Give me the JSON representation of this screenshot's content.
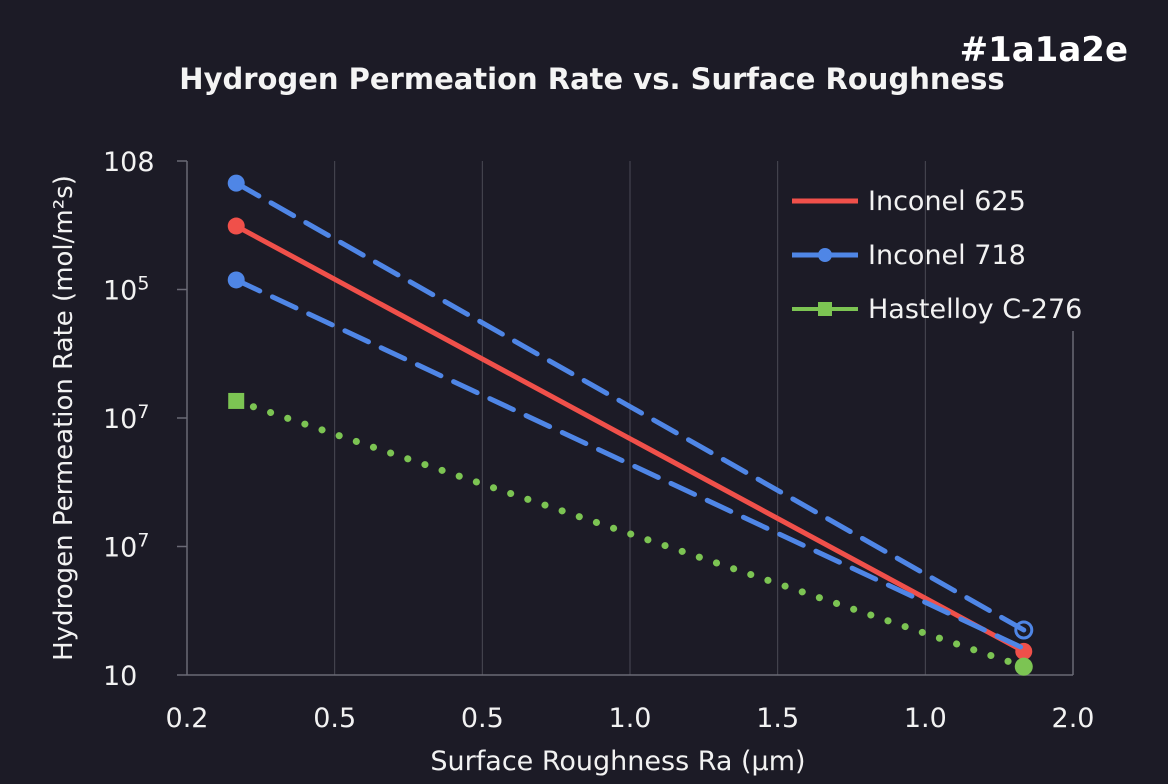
{
  "tag_text": "#1a1a2e",
  "chart_data": {
    "type": "line",
    "title": "Hydrogen Permeation Rate vs. Surface Roughness",
    "xlabel": "Surface Roughness Ra (μm)",
    "ylabel": "Hydrogen Permeation Rate (mol/m²s)",
    "xlim": [
      0.2,
      2.0
    ],
    "ylim": [
      10,
      100000000
    ],
    "yscale": "log",
    "x_tick_labels": [
      "0.2",
      "0.5",
      "0.5",
      "1.0",
      "1.5",
      "1.0",
      "2.0"
    ],
    "y_tick_labels": [
      {
        "base": "108",
        "exp": ""
      },
      {
        "base": "10",
        "exp": "5"
      },
      {
        "base": "10",
        "exp": "7"
      },
      {
        "base": "10",
        "exp": "7"
      },
      {
        "base": "10",
        "exp": ""
      }
    ],
    "grid": {
      "vertical": true,
      "horizontal": false
    },
    "legend_position": "top-right",
    "background": "#1c1b26",
    "series": [
      {
        "name": "Inconel 625",
        "color": "#f0504a",
        "style": "solid",
        "marker": "circle",
        "x": [
          0.3,
          1.9
        ],
        "y": [
          13000000,
          21
        ]
      },
      {
        "name": "Inconel 718",
        "color": "#4f86e6",
        "style": "dashed",
        "marker": "circle",
        "x": [
          0.3,
          1.9
        ],
        "y": [
          50000000,
          41
        ]
      },
      {
        "name": "",
        "color": "#4f86e6",
        "style": "dashed",
        "marker": "circle",
        "x": [
          0.3,
          1.9
        ],
        "y": [
          2400000,
          23
        ]
      },
      {
        "name": "Hastelloy C-276",
        "color": "#7cc453",
        "style": "dotted",
        "marker": "square",
        "x": [
          0.3,
          1.9
        ],
        "y": [
          54000,
          13
        ]
      }
    ]
  }
}
